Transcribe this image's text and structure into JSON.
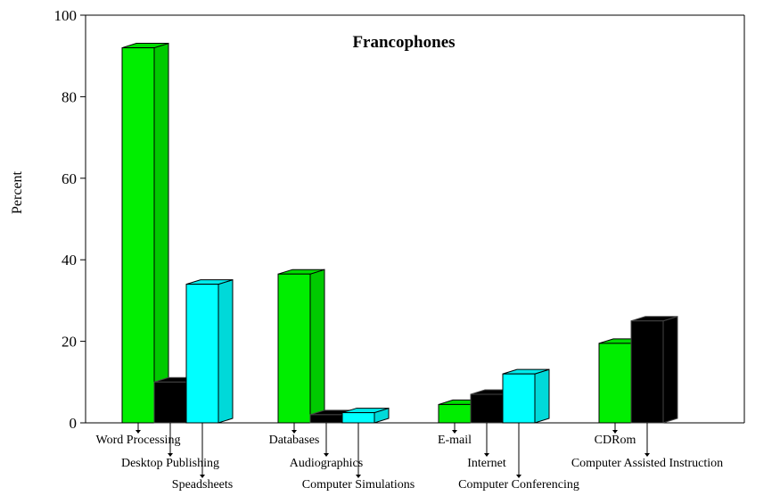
{
  "chart_data": {
    "type": "bar",
    "title": "Francophones",
    "xlabel": "",
    "ylabel": "Percent",
    "ylim": [
      0,
      100
    ],
    "yticks": [
      0,
      20,
      40,
      60,
      80,
      100
    ],
    "grid": false,
    "legend": "none",
    "style": "3d",
    "bars": [
      {
        "label": "Word Processing",
        "value": 92,
        "color": "#00ee00",
        "group": 0
      },
      {
        "label": "Desktop Publishing",
        "value": 10,
        "color": "#000000",
        "group": 0
      },
      {
        "label": "Speadsheets",
        "value": 34,
        "color": "#00ffff",
        "group": 0
      },
      {
        "label": "Databases",
        "value": 36.5,
        "color": "#00ee00",
        "group": 1
      },
      {
        "label": "Audiographics",
        "value": 2,
        "color": "#000000",
        "group": 1
      },
      {
        "label": "Computer Simulations",
        "value": 2.5,
        "color": "#00ffff",
        "group": 1
      },
      {
        "label": "E-mail",
        "value": 4.5,
        "color": "#00ee00",
        "group": 2
      },
      {
        "label": "Internet",
        "value": 7,
        "color": "#000000",
        "group": 2
      },
      {
        "label": "Computer Conferencing",
        "value": 12,
        "color": "#00ffff",
        "group": 2
      },
      {
        "label": "CDRom",
        "value": 19.5,
        "color": "#00ee00",
        "group": 3
      },
      {
        "label": "Computer Assisted Instruction",
        "value": 25,
        "color": "#000000",
        "group": 3
      }
    ]
  }
}
